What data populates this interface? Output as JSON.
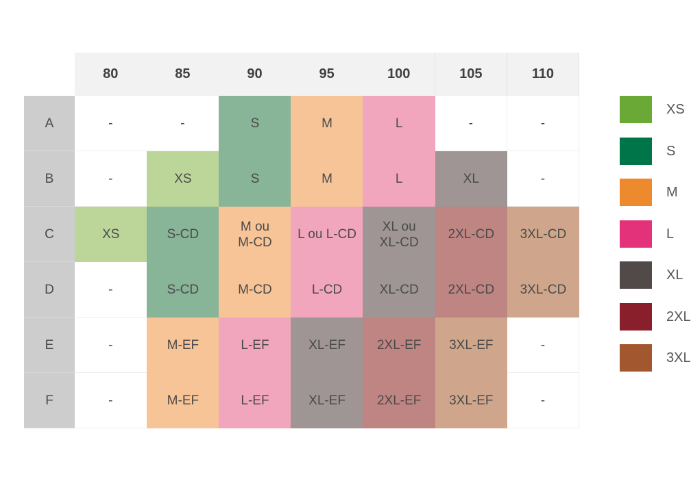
{
  "columns": [
    "80",
    "85",
    "90",
    "95",
    "100",
    "105",
    "110"
  ],
  "rows": [
    {
      "label": "A",
      "cells": [
        "-",
        "-",
        "S",
        "M",
        "L",
        "-",
        "-"
      ]
    },
    {
      "label": "B",
      "cells": [
        "-",
        "XS",
        "S",
        "M",
        "L",
        "XL",
        "-"
      ]
    },
    {
      "label": "C",
      "cells": [
        "XS",
        "S-CD",
        "M ou\nM-CD",
        "L ou L-CD",
        "XL ou\nXL-CD",
        "2XL-CD",
        "3XL-CD"
      ]
    },
    {
      "label": "D",
      "cells": [
        "-",
        "S-CD",
        "M-CD",
        "L-CD",
        "XL-CD",
        "2XL-CD",
        "3XL-CD"
      ]
    },
    {
      "label": "E",
      "cells": [
        "-",
        "M-EF",
        "L-EF",
        "XL-EF",
        "2XL-EF",
        "3XL-EF",
        "-"
      ]
    },
    {
      "label": "F",
      "cells": [
        "-",
        "M-EF",
        "L-EF",
        "XL-EF",
        "2XL-EF",
        "3XL-EF",
        "-"
      ]
    }
  ],
  "size_colors": {
    "XS": "#bcd69a",
    "S": "#88b498",
    "M": "#f7c497",
    "L": "#f2a6be",
    "XL": "#9e9594",
    "2XL": "#bf8582",
    "3XL": "#cfa68b",
    "empty": "#ffffff"
  },
  "legend": [
    {
      "label": "XS",
      "color": "#6aa935"
    },
    {
      "label": "S",
      "color": "#00754a"
    },
    {
      "label": "M",
      "color": "#ee8a2e"
    },
    {
      "label": "L",
      "color": "#e4327a"
    },
    {
      "label": "XL",
      "color": "#524949"
    },
    {
      "label": "2XL",
      "color": "#8a1f2c"
    },
    {
      "label": "3XL",
      "color": "#a3572e"
    }
  ]
}
